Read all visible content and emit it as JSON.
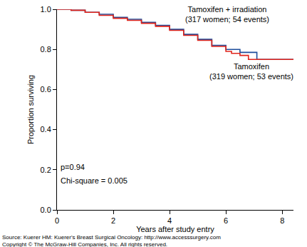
{
  "chart_data": {
    "type": "line",
    "line_style": "step",
    "x_label": "Years after study entry",
    "y_label": "Proportion surviving",
    "xlim": [
      0,
      8.4
    ],
    "ylim": [
      0,
      1.0
    ],
    "xticks": [
      0,
      2,
      4,
      6,
      8
    ],
    "yticks": [
      {
        "value": 0,
        "label": "0.0"
      },
      {
        "value": 0.2,
        "label": "0.2"
      },
      {
        "value": 0.4,
        "label": "0.4"
      },
      {
        "value": 0.6,
        "label": "0.6"
      },
      {
        "value": 0.8,
        "label": "0.8"
      },
      {
        "value": 1.0,
        "label": "1.0"
      }
    ],
    "grid": false,
    "legend": false,
    "annotations": [
      "p=0.94",
      "Chi-square = 0.005"
    ],
    "source": [
      "Source: Kuerer HM: Kuerer's Breast Surgical Oncology: http://www.accesssurgery.com",
      "Copyright © The McGraw-Hill Companies, Inc. All rights reserved."
    ],
    "series": [
      {
        "name": "Tamoxifen + irradiation",
        "note": "(317 women; 54 events)",
        "color": "#1f4e9c",
        "x": [
          0,
          0.5,
          1,
          1.5,
          2,
          2.5,
          3,
          3.5,
          4,
          4.5,
          5,
          5.5,
          6,
          6.5,
          7.1,
          8.4
        ],
        "values": [
          1.0,
          0.995,
          0.985,
          0.975,
          0.96,
          0.95,
          0.935,
          0.92,
          0.9,
          0.875,
          0.85,
          0.82,
          0.8,
          0.785,
          0.75,
          0.75
        ]
      },
      {
        "name": "Tamoxifen",
        "note": "(319 women; 53 events)",
        "color": "#e0241b",
        "x": [
          0,
          0.5,
          1,
          1.5,
          2,
          2.5,
          3,
          3.5,
          4,
          4.5,
          5,
          5.5,
          6,
          6.2,
          6.5,
          6.8,
          8.4
        ],
        "values": [
          1.0,
          0.995,
          0.985,
          0.97,
          0.955,
          0.945,
          0.93,
          0.915,
          0.895,
          0.87,
          0.845,
          0.815,
          0.79,
          0.78,
          0.77,
          0.75,
          0.75
        ]
      }
    ]
  }
}
